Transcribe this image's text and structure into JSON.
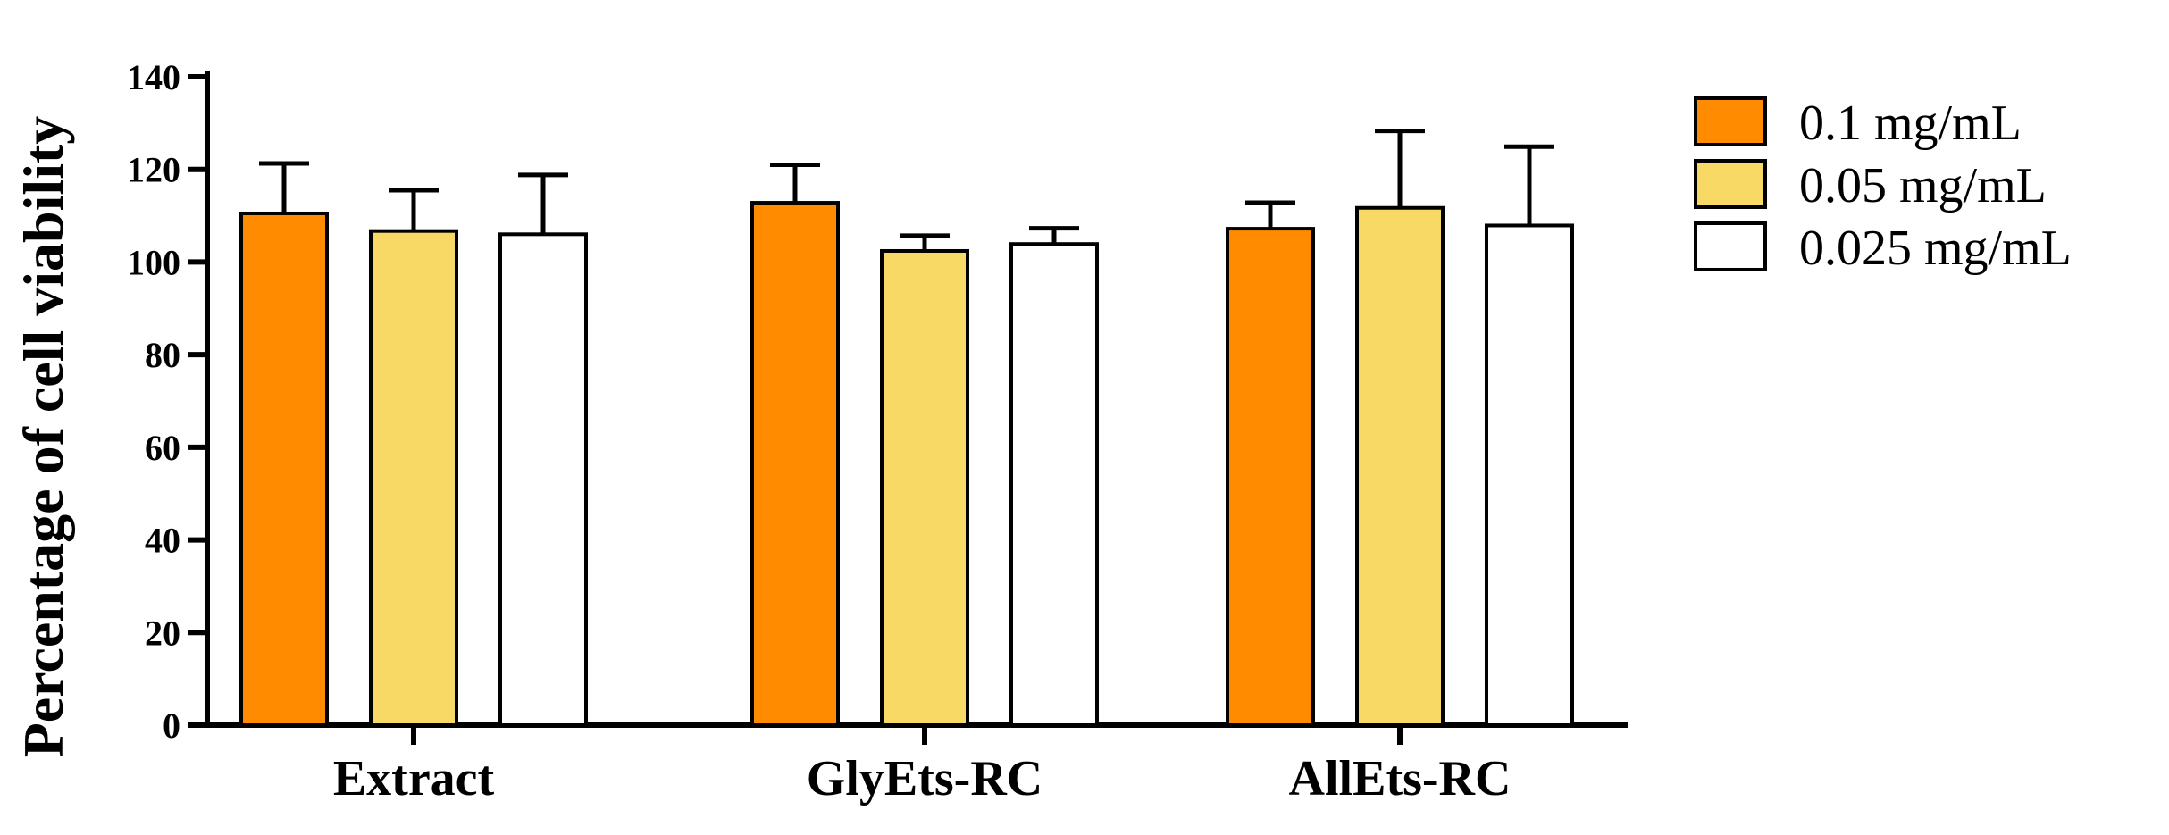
{
  "chart_data": {
    "type": "bar",
    "title": "",
    "xlabel": "",
    "ylabel": "Percentage of cell viability",
    "ylim": [
      0,
      140
    ],
    "yticks": [
      0,
      20,
      40,
      60,
      80,
      100,
      120,
      140
    ],
    "categories": [
      "Extract",
      "GlyEts-RC",
      "AllEts-RC"
    ],
    "series": [
      {
        "name": "0.1 mg/mL",
        "color": "#FF8C00",
        "values": [
          110.5,
          112.8,
          107.2
        ],
        "errors": [
          10.8,
          8.2,
          5.6
        ]
      },
      {
        "name": "0.05 mg/mL",
        "color": "#F9D966",
        "values": [
          106.7,
          102.4,
          111.7
        ],
        "errors": [
          8.8,
          3.3,
          16.6
        ]
      },
      {
        "name": "0.025 mg/mL",
        "color": "#FFFFFF",
        "values": [
          106.0,
          103.9,
          107.9
        ],
        "errors": [
          12.8,
          3.4,
          17.0
        ]
      }
    ],
    "grid": false,
    "legend_position": "top-right"
  }
}
